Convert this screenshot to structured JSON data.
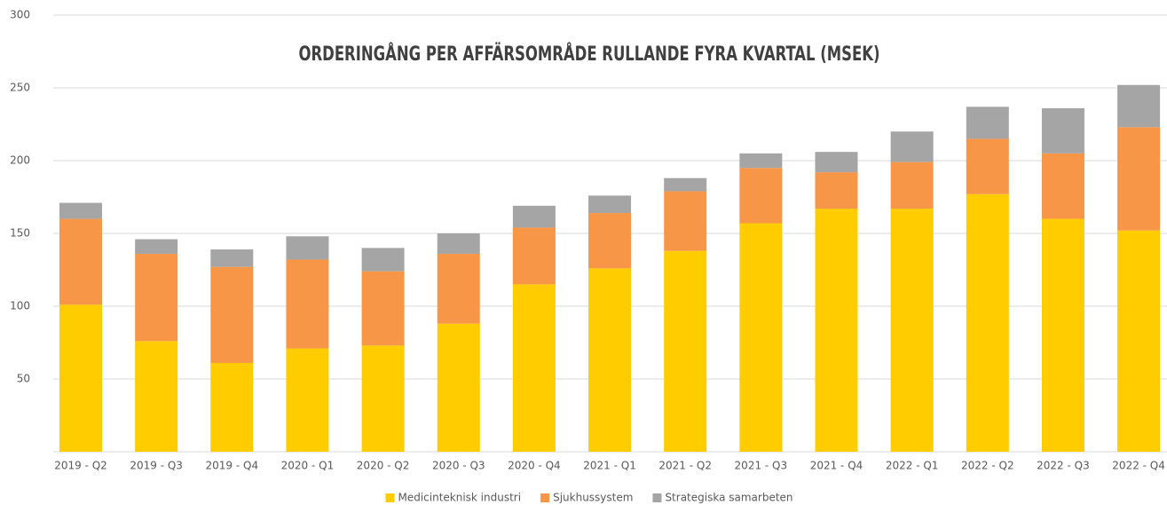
{
  "chart_data": {
    "type": "stacked_bar",
    "title": "ORDERINGÅNG PER AFFÄRSOMRÅDE RULLANDE FYRA KVARTAL (MSEK)",
    "categories": [
      "2019 - Q2",
      "2019 - Q3",
      "2019 - Q4",
      "2020 - Q1",
      "2020 - Q2",
      "2020 - Q3",
      "2020 - Q4",
      "2021 - Q1",
      "2021 - Q2",
      "2021 - Q3",
      "2021 - Q4",
      "2022 - Q1",
      "2022 - Q2",
      "2022 - Q3",
      "2022 - Q4"
    ],
    "series": [
      {
        "name": "Medicinteknisk industri",
        "color": "#ffcc00",
        "values": [
          101,
          76,
          61,
          71,
          73,
          88,
          115,
          126,
          138,
          157,
          167,
          167,
          177,
          160,
          152
        ]
      },
      {
        "name": "Sjukhussystem",
        "color": "#f79646",
        "values": [
          59,
          60,
          66,
          61,
          51,
          48,
          39,
          38,
          41,
          38,
          25,
          32,
          38,
          45,
          71
        ]
      },
      {
        "name": "Strategiska samarbeten",
        "color": "#a5a5a5",
        "values": [
          11,
          10,
          12,
          16,
          16,
          14,
          15,
          12,
          9,
          10,
          14,
          21,
          22,
          31,
          29
        ]
      }
    ],
    "ylim": [
      0,
      300
    ],
    "yticks": [
      50,
      100,
      150,
      200,
      250,
      300
    ],
    "grid": true,
    "legend": "bottom"
  }
}
